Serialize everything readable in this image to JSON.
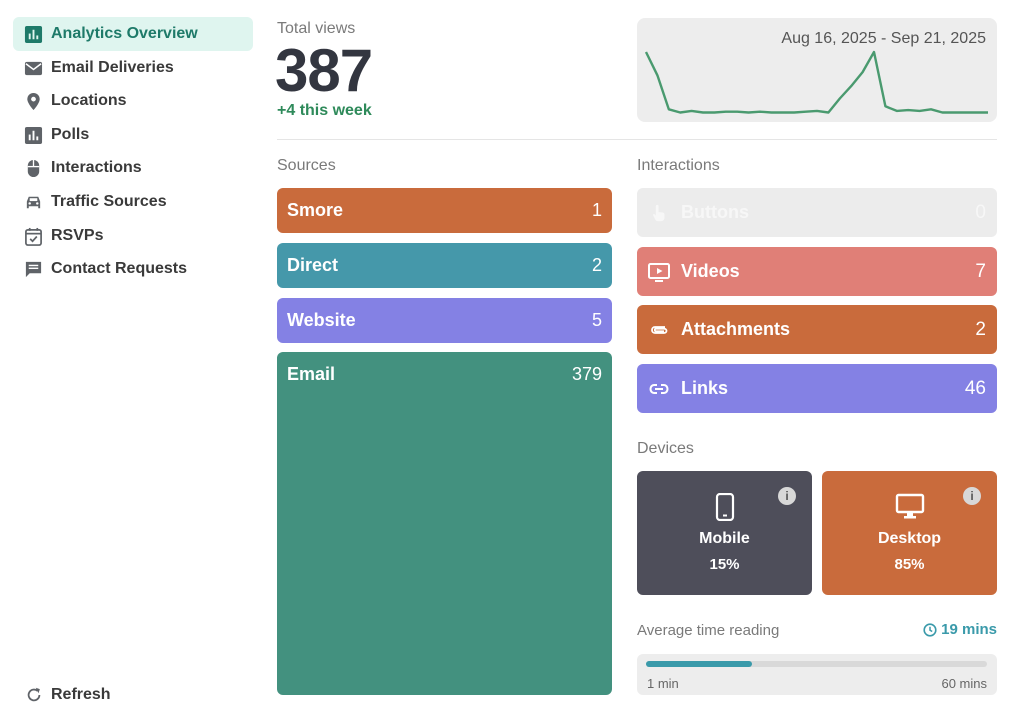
{
  "sidebar": {
    "items": [
      {
        "label": "Analytics Overview",
        "icon": "bar-chart-icon",
        "active": true
      },
      {
        "label": "Email Deliveries",
        "icon": "envelope-icon"
      },
      {
        "label": "Locations",
        "icon": "map-pin-icon"
      },
      {
        "label": "Polls",
        "icon": "poll-icon"
      },
      {
        "label": "Interactions",
        "icon": "mouse-icon"
      },
      {
        "label": "Traffic Sources",
        "icon": "car-icon"
      },
      {
        "label": "RSVPs",
        "icon": "calendar-check-icon"
      },
      {
        "label": "Contact Requests",
        "icon": "message-icon"
      }
    ],
    "refresh_label": "Refresh"
  },
  "total_views": {
    "label": "Total views",
    "value": "387",
    "change": "+4 this week"
  },
  "sparkline": {
    "date_range": "Aug 16, 2025 - Sep 21, 2025",
    "color": "#4a9a6f"
  },
  "chart_data": {
    "type": "line",
    "title": "",
    "series": [
      {
        "values": [
          40,
          25,
          3,
          1,
          2,
          1,
          1,
          1.5,
          1.5,
          1,
          1.5,
          1,
          1,
          1,
          1.5,
          2,
          1,
          10,
          18,
          27,
          40,
          5,
          2,
          2.5,
          2,
          3,
          1,
          1,
          1,
          1,
          1
        ]
      }
    ]
  },
  "sources": {
    "label": "Sources",
    "items": [
      {
        "name": "Smore",
        "value": "1",
        "color": "#c96b3c"
      },
      {
        "name": "Direct",
        "value": "2",
        "color": "#4598aa"
      },
      {
        "name": "Website",
        "value": "5",
        "color": "#8481e4"
      },
      {
        "name": "Email",
        "value": "379",
        "color": "#43917f"
      }
    ]
  },
  "interactions": {
    "label": "Interactions",
    "items": [
      {
        "name": "Buttons",
        "value": "0",
        "icon": "pointer-hand-icon",
        "color": "#ececec"
      },
      {
        "name": "Videos",
        "value": "7",
        "icon": "video-icon",
        "color": "#e07f77"
      },
      {
        "name": "Attachments",
        "value": "2",
        "icon": "paperclip-icon",
        "color": "#c96b3c"
      },
      {
        "name": "Links",
        "value": "46",
        "icon": "link-icon",
        "color": "#8481e4"
      }
    ]
  },
  "devices": {
    "label": "Devices",
    "items": [
      {
        "name": "Mobile",
        "percent": "15%",
        "icon": "mobile-phone-icon",
        "color": "#4e4e5a"
      },
      {
        "name": "Desktop",
        "percent": "85%",
        "icon": "desktop-monitor-icon",
        "color": "#c96b3c"
      }
    ]
  },
  "reading": {
    "label": "Average time reading",
    "value": "19 mins",
    "min_label": "1 min",
    "max_label": "60 mins",
    "progress_fraction": 0.31
  }
}
